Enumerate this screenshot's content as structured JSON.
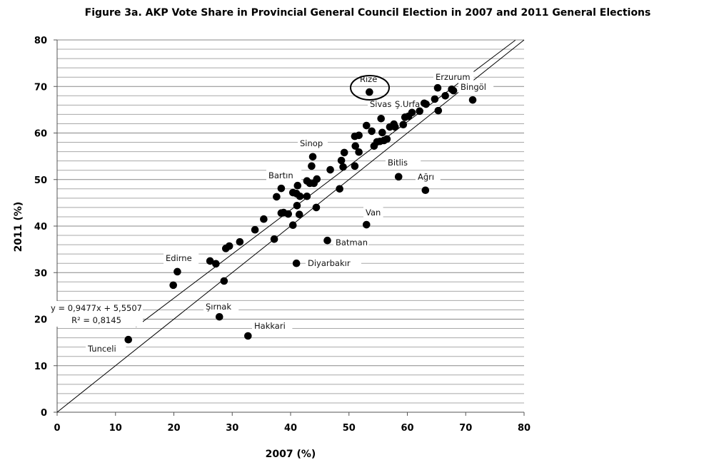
{
  "chart_data": {
    "type": "scatter",
    "title": "Figure 3a. AKP Vote Share in Provincial General Council Election in 2007 and 2011 General Elections",
    "xlabel": "2007 (%)",
    "ylabel": "2011 (%)",
    "xlim": [
      0,
      80
    ],
    "ylim": [
      0,
      80
    ],
    "xticks": [
      0,
      10,
      20,
      30,
      40,
      50,
      60,
      70,
      80
    ],
    "yticks": [
      0,
      10,
      20,
      30,
      40,
      50,
      60,
      70,
      80
    ],
    "grid": "horizontal, minor every 2",
    "point_color": "#000000",
    "trendline": {
      "equation": "y = 0,9477x + 5,5507",
      "r2": "R² = 0,8145",
      "slope": 0.9477,
      "intercept": 5.5507
    },
    "reference_line": "y = x",
    "labeled_points": [
      {
        "name": "Tunceli",
        "x": 12.2,
        "y": 15.6
      },
      {
        "name": "Şırnak",
        "x": 27.8,
        "y": 20.5
      },
      {
        "name": "Hakkari",
        "x": 32.7,
        "y": 16.4
      },
      {
        "name": "Edirne",
        "x": 20.6,
        "y": 30.2
      },
      {
        "name": "Diyarbakır",
        "x": 41.0,
        "y": 32.0
      },
      {
        "name": "Batman",
        "x": 46.3,
        "y": 36.9
      },
      {
        "name": "Van",
        "x": 53.0,
        "y": 40.3
      },
      {
        "name": "Bartın",
        "x": 38.4,
        "y": 48.1
      },
      {
        "name": "Sinop",
        "x": 43.8,
        "y": 54.9
      },
      {
        "name": "Bitlis",
        "x": 58.5,
        "y": 50.6
      },
      {
        "name": "Ağrı",
        "x": 63.1,
        "y": 47.7
      },
      {
        "name": "Rize",
        "x": 53.5,
        "y": 68.8
      },
      {
        "name": "Sivas",
        "x": 55.5,
        "y": 63.1
      },
      {
        "name": "Ş.Urfa",
        "x": 59.6,
        "y": 63.4
      },
      {
        "name": "Erzurum",
        "x": 65.2,
        "y": 69.7
      },
      {
        "name": "Bingöl",
        "x": 67.9,
        "y": 69.1
      }
    ],
    "points": [
      [
        19.9,
        27.3
      ],
      [
        26.2,
        32.5
      ],
      [
        27.2,
        31.9
      ],
      [
        28.6,
        28.2
      ],
      [
        28.9,
        35.2
      ],
      [
        29.5,
        35.7
      ],
      [
        31.3,
        36.6
      ],
      [
        33.9,
        39.2
      ],
      [
        35.4,
        41.5
      ],
      [
        37.2,
        37.2
      ],
      [
        37.6,
        46.3
      ],
      [
        38.4,
        42.8
      ],
      [
        38.8,
        42.9
      ],
      [
        39.6,
        42.6
      ],
      [
        40.4,
        47.2
      ],
      [
        41.0,
        47.0
      ],
      [
        41.6,
        46.4
      ],
      [
        41.1,
        44.4
      ],
      [
        40.4,
        40.2
      ],
      [
        41.5,
        42.5
      ],
      [
        42.8,
        46.4
      ],
      [
        41.2,
        48.7
      ],
      [
        42.8,
        49.7
      ],
      [
        43.3,
        49.2
      ],
      [
        44.0,
        49.2
      ],
      [
        44.5,
        50.1
      ],
      [
        43.6,
        52.9
      ],
      [
        44.4,
        44.0
      ],
      [
        46.8,
        52.1
      ],
      [
        48.4,
        48.0
      ],
      [
        48.7,
        54.1
      ],
      [
        49.0,
        52.7
      ],
      [
        49.2,
        55.8
      ],
      [
        51.0,
        52.9
      ],
      [
        51.1,
        57.2
      ],
      [
        51.0,
        59.3
      ],
      [
        51.7,
        59.5
      ],
      [
        51.7,
        55.9
      ],
      [
        53.0,
        61.6
      ],
      [
        53.9,
        60.4
      ],
      [
        54.3,
        57.2
      ],
      [
        54.8,
        58.1
      ],
      [
        55.3,
        58.2
      ],
      [
        55.7,
        60.1
      ],
      [
        56.0,
        58.4
      ],
      [
        56.5,
        58.7
      ],
      [
        57.0,
        61.3
      ],
      [
        57.7,
        61.9
      ],
      [
        57.9,
        61.3
      ],
      [
        59.3,
        61.8
      ],
      [
        60.2,
        63.6
      ],
      [
        60.8,
        64.4
      ],
      [
        62.1,
        64.7
      ],
      [
        62.9,
        66.4
      ],
      [
        63.2,
        66.2
      ],
      [
        64.7,
        67.3
      ],
      [
        65.3,
        64.8
      ],
      [
        66.5,
        68.0
      ],
      [
        67.6,
        69.4
      ],
      [
        71.2,
        67.1
      ]
    ]
  }
}
